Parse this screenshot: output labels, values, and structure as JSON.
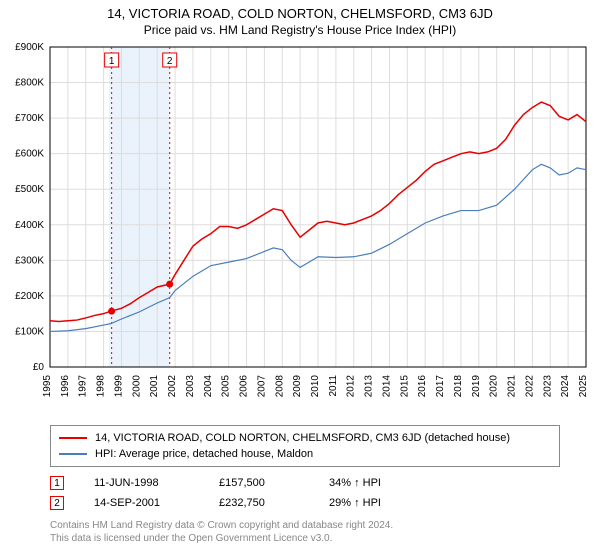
{
  "title_line1": "14, VICTORIA ROAD, COLD NORTON, CHELMSFORD, CM3 6JD",
  "title_line2": "Price paid vs. HM Land Registry's House Price Index (HPI)",
  "chart": {
    "type": "line",
    "background_color": "#ffffff",
    "grid_color": "#dddddd",
    "axis_color": "#000000",
    "label_fontsize": 10,
    "x_years": [
      "1995",
      "1996",
      "1997",
      "1998",
      "1999",
      "2000",
      "2001",
      "2002",
      "2003",
      "2004",
      "2005",
      "2006",
      "2007",
      "2008",
      "2009",
      "2010",
      "2011",
      "2012",
      "2013",
      "2014",
      "2015",
      "2016",
      "2017",
      "2018",
      "2019",
      "2020",
      "2021",
      "2022",
      "2023",
      "2024",
      "2025"
    ],
    "ylim": [
      0,
      900
    ],
    "ytick_step": 100,
    "ytick_prefix": "£",
    "ytick_suffix": "K",
    "shaded_band": {
      "from_year": 1998.3,
      "to_year": 2001.7,
      "color": "#eaf2fb"
    },
    "series": [
      {
        "name": "price_paid",
        "color": "#e60000",
        "line_width": 1.5,
        "legend": "14, VICTORIA ROAD, COLD NORTON, CHELMSFORD, CM3 6JD (detached house)",
        "points": [
          [
            1995,
            130
          ],
          [
            1995.5,
            128
          ],
          [
            1996,
            130
          ],
          [
            1996.5,
            132
          ],
          [
            1997,
            138
          ],
          [
            1997.5,
            145
          ],
          [
            1998,
            150
          ],
          [
            1998.4,
            157
          ],
          [
            1999,
            165
          ],
          [
            1999.5,
            178
          ],
          [
            2000,
            195
          ],
          [
            2000.5,
            210
          ],
          [
            2001,
            225
          ],
          [
            2001.7,
            233
          ],
          [
            2002,
            260
          ],
          [
            2002.5,
            300
          ],
          [
            2003,
            340
          ],
          [
            2003.5,
            360
          ],
          [
            2004,
            375
          ],
          [
            2004.5,
            395
          ],
          [
            2005,
            395
          ],
          [
            2005.5,
            390
          ],
          [
            2006,
            400
          ],
          [
            2006.5,
            415
          ],
          [
            2007,
            430
          ],
          [
            2007.5,
            445
          ],
          [
            2008,
            440
          ],
          [
            2008.5,
            400
          ],
          [
            2009,
            365
          ],
          [
            2009.5,
            385
          ],
          [
            2010,
            405
          ],
          [
            2010.5,
            410
          ],
          [
            2011,
            405
          ],
          [
            2011.5,
            400
          ],
          [
            2012,
            405
          ],
          [
            2012.5,
            415
          ],
          [
            2013,
            425
          ],
          [
            2013.5,
            440
          ],
          [
            2014,
            460
          ],
          [
            2014.5,
            485
          ],
          [
            2015,
            505
          ],
          [
            2015.5,
            525
          ],
          [
            2016,
            550
          ],
          [
            2016.5,
            570
          ],
          [
            2017,
            580
          ],
          [
            2017.5,
            590
          ],
          [
            2018,
            600
          ],
          [
            2018.5,
            605
          ],
          [
            2019,
            600
          ],
          [
            2019.5,
            605
          ],
          [
            2020,
            615
          ],
          [
            2020.5,
            640
          ],
          [
            2021,
            680
          ],
          [
            2021.5,
            710
          ],
          [
            2022,
            730
          ],
          [
            2022.5,
            745
          ],
          [
            2023,
            735
          ],
          [
            2023.5,
            705
          ],
          [
            2024,
            695
          ],
          [
            2024.5,
            710
          ],
          [
            2025,
            690
          ]
        ]
      },
      {
        "name": "hpi",
        "color": "#4a7ebb",
        "line_width": 1.2,
        "legend": "HPI: Average price, detached house, Maldon",
        "points": [
          [
            1995,
            100
          ],
          [
            1996,
            102
          ],
          [
            1997,
            108
          ],
          [
            1998,
            118
          ],
          [
            1998.4,
            122
          ],
          [
            1999,
            135
          ],
          [
            2000,
            155
          ],
          [
            2001,
            180
          ],
          [
            2001.7,
            195
          ],
          [
            2002,
            215
          ],
          [
            2003,
            255
          ],
          [
            2004,
            285
          ],
          [
            2005,
            295
          ],
          [
            2006,
            305
          ],
          [
            2007,
            325
          ],
          [
            2007.5,
            335
          ],
          [
            2008,
            330
          ],
          [
            2008.5,
            300
          ],
          [
            2009,
            280
          ],
          [
            2009.5,
            295
          ],
          [
            2010,
            310
          ],
          [
            2011,
            308
          ],
          [
            2012,
            310
          ],
          [
            2013,
            320
          ],
          [
            2014,
            345
          ],
          [
            2015,
            375
          ],
          [
            2016,
            405
          ],
          [
            2017,
            425
          ],
          [
            2018,
            440
          ],
          [
            2019,
            440
          ],
          [
            2020,
            455
          ],
          [
            2021,
            500
          ],
          [
            2022,
            555
          ],
          [
            2022.5,
            570
          ],
          [
            2023,
            560
          ],
          [
            2023.5,
            540
          ],
          [
            2024,
            545
          ],
          [
            2024.5,
            560
          ],
          [
            2025,
            555
          ]
        ]
      }
    ],
    "sale_markers": [
      {
        "num": "1",
        "year": 1998.45,
        "value": 157,
        "line_color": "#e60000",
        "dot_color": "#e60000"
      },
      {
        "num": "2",
        "year": 2001.7,
        "value": 233,
        "line_color": "#e60000",
        "dot_color": "#e60000"
      }
    ]
  },
  "sales": [
    {
      "num": "1",
      "date": "11-JUN-1998",
      "price": "£157,500",
      "diff": "34% ↑ HPI"
    },
    {
      "num": "2",
      "date": "14-SEP-2001",
      "price": "£232,750",
      "diff": "29% ↑ HPI"
    }
  ],
  "footnote_line1": "Contains HM Land Registry data © Crown copyright and database right 2024.",
  "footnote_line2": "This data is licensed under the Open Government Licence v3.0.",
  "marker_box_border": "#e60000",
  "marker_box_text": "#000000"
}
